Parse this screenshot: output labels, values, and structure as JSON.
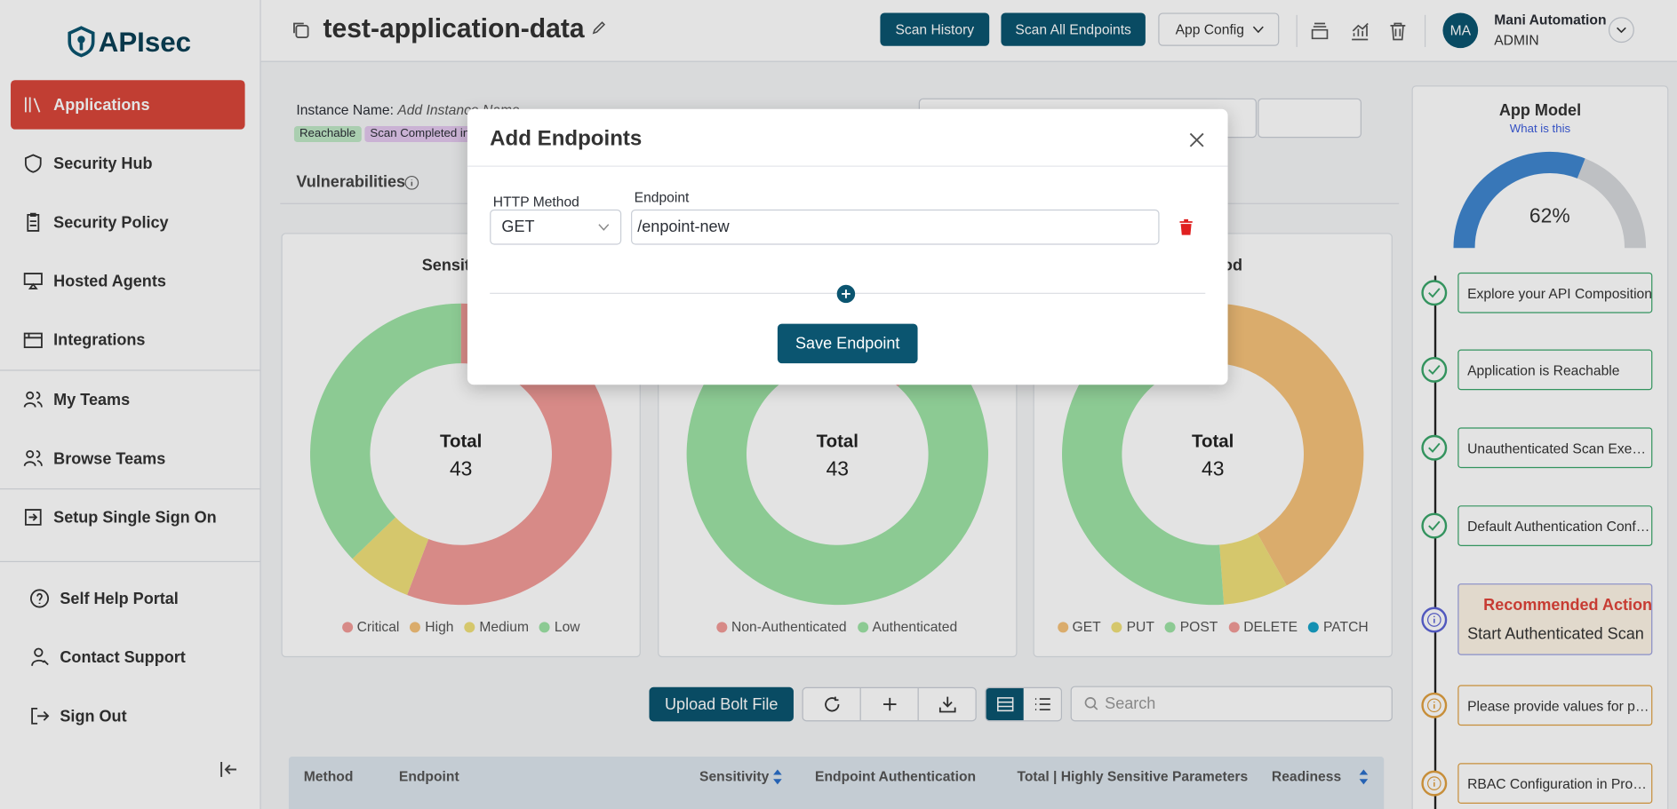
{
  "sidebar": {
    "logo": "APIsec",
    "items": [
      "Applications",
      "Security Hub",
      "Security Policy",
      "Hosted Agents",
      "Integrations",
      "My Teams",
      "Browse Teams",
      "Setup Single Sign On"
    ],
    "footer_items": [
      "Self Help Portal",
      "Contact Support",
      "Sign Out"
    ]
  },
  "header": {
    "title": "test-application-data",
    "buttons": [
      "Scan History",
      "Scan All Endpoints",
      "App Config"
    ],
    "user_initials": "MA",
    "user_name": "Mani Automation",
    "user_role": "ADMIN"
  },
  "instance": {
    "label": "Instance Name:",
    "placeholder": "Add Instance Name",
    "badges": [
      "Reachable",
      "Scan Completed in"
    ]
  },
  "tab": "Vulnerabilities",
  "chart_data": [
    {
      "type": "donut",
      "title": "Sensitivity",
      "center_label": "Total",
      "total": 43,
      "categories": [
        "Critical",
        "High",
        "Medium",
        "Low"
      ],
      "values": [
        24,
        0,
        3,
        16
      ],
      "colors": [
        "#f29b98",
        "#f5c27a",
        "#f0e07a",
        "#9ee3a6"
      ]
    },
    {
      "type": "donut",
      "center_label": "Total",
      "total": 43,
      "categories": [
        "Non-Authenticated",
        "Authenticated"
      ],
      "values": [
        5,
        38
      ],
      "colors": [
        "#f29b98",
        "#9ee3a6"
      ]
    },
    {
      "type": "donut",
      "title": "Method",
      "center_label": "Total",
      "total": 43,
      "categories": [
        "GET",
        "PUT",
        "POST",
        "DELETE",
        "PATCH"
      ],
      "values": [
        18,
        3,
        22,
        0,
        0
      ],
      "colors": [
        "#f5c27a",
        "#f0e07a",
        "#9ee3a6",
        "#f29b98",
        "#17a2c8"
      ]
    }
  ],
  "toolbar": {
    "upload": "Upload Bolt File",
    "search_placeholder": "Search"
  },
  "table": {
    "columns": [
      "Method",
      "Endpoint",
      "Sensitivity",
      "Endpoint Authentication",
      "Total | Highly Sensitive Parameters",
      "Readiness"
    ]
  },
  "app_model": {
    "title": "App Model",
    "help": "What is this",
    "gauge": {
      "value": 62,
      "label": "62%"
    },
    "steps": [
      {
        "text": "Explore your API Composition",
        "status": "done"
      },
      {
        "text": "Application is Reachable",
        "status": "done"
      },
      {
        "text": "Unauthenticated Scan Exe…",
        "status": "done"
      },
      {
        "text": "Default Authentication Conf…",
        "status": "done"
      },
      {
        "title": "Recommended Action",
        "text": "Start Authenticated Scan",
        "status": "current"
      },
      {
        "text": "Please provide values for p…",
        "status": "pending"
      },
      {
        "text": "RBAC Configuration in Pro…",
        "status": "pending"
      }
    ]
  },
  "modal": {
    "title": "Add Endpoints",
    "method_label": "HTTP Method",
    "method": "GET",
    "endpoint_label": "Endpoint",
    "endpoint": "/enpoint-new",
    "save": "Save Endpoint"
  }
}
